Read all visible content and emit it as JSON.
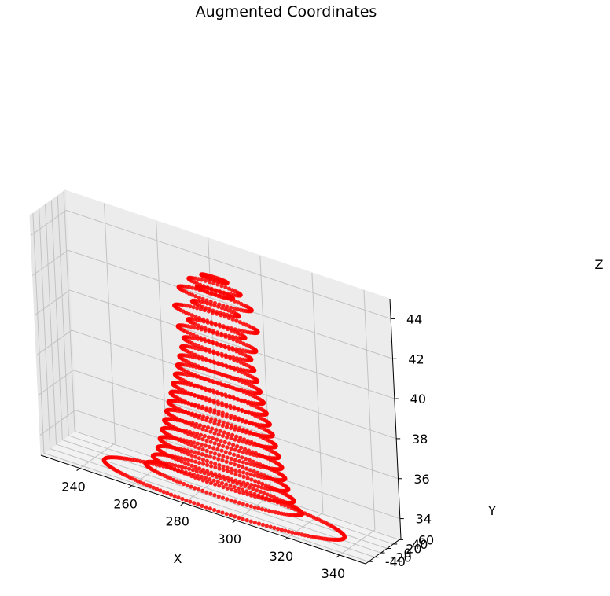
{
  "chart_data": {
    "type": "scatter",
    "projection": "3d",
    "title": "Augmented Coordinates",
    "xlabel": "X",
    "ylabel": "Y",
    "zlabel": "Z",
    "xlim": [
      225,
      350
    ],
    "ylim": [
      -50,
      65
    ],
    "zlim": [
      33,
      45
    ],
    "xticks": [
      240,
      260,
      280,
      300,
      320,
      340
    ],
    "yticks": [
      -40,
      -20,
      0,
      20,
      40,
      60
    ],
    "zticks": [
      34,
      36,
      38,
      40,
      42,
      44
    ],
    "grid": true,
    "marker_color": "#ff0000",
    "series": [
      {
        "shape": "concentric rings stacked into a dome",
        "center_x": 289,
        "center_y": 6,
        "rings": [
          {
            "z": 33.0,
            "radius": 46
          },
          {
            "z": 33.5,
            "radius": 30
          },
          {
            "z": 34.0,
            "radius": 27
          },
          {
            "z": 34.5,
            "radius": 25
          },
          {
            "z": 35.0,
            "radius": 24
          },
          {
            "z": 35.5,
            "radius": 23
          },
          {
            "z": 36.0,
            "radius": 22
          },
          {
            "z": 36.5,
            "radius": 21
          },
          {
            "z": 37.0,
            "radius": 20
          },
          {
            "z": 37.5,
            "radius": 19
          },
          {
            "z": 38.0,
            "radius": 18
          },
          {
            "z": 38.5,
            "radius": 17
          },
          {
            "z": 39.0,
            "radius": 16
          },
          {
            "z": 39.5,
            "radius": 15
          },
          {
            "z": 40.0,
            "radius": 14
          },
          {
            "z": 40.5,
            "radius": 13
          },
          {
            "z": 41.0,
            "radius": 15
          },
          {
            "z": 41.5,
            "radius": 11
          },
          {
            "z": 42.0,
            "radius": 16
          },
          {
            "z": 42.5,
            "radius": 9
          },
          {
            "z": 43.0,
            "radius": 14
          },
          {
            "z": 43.3,
            "radius": 7
          },
          {
            "z": 43.6,
            "radius": 10
          },
          {
            "z": 44.0,
            "radius": 5
          }
        ]
      }
    ]
  }
}
